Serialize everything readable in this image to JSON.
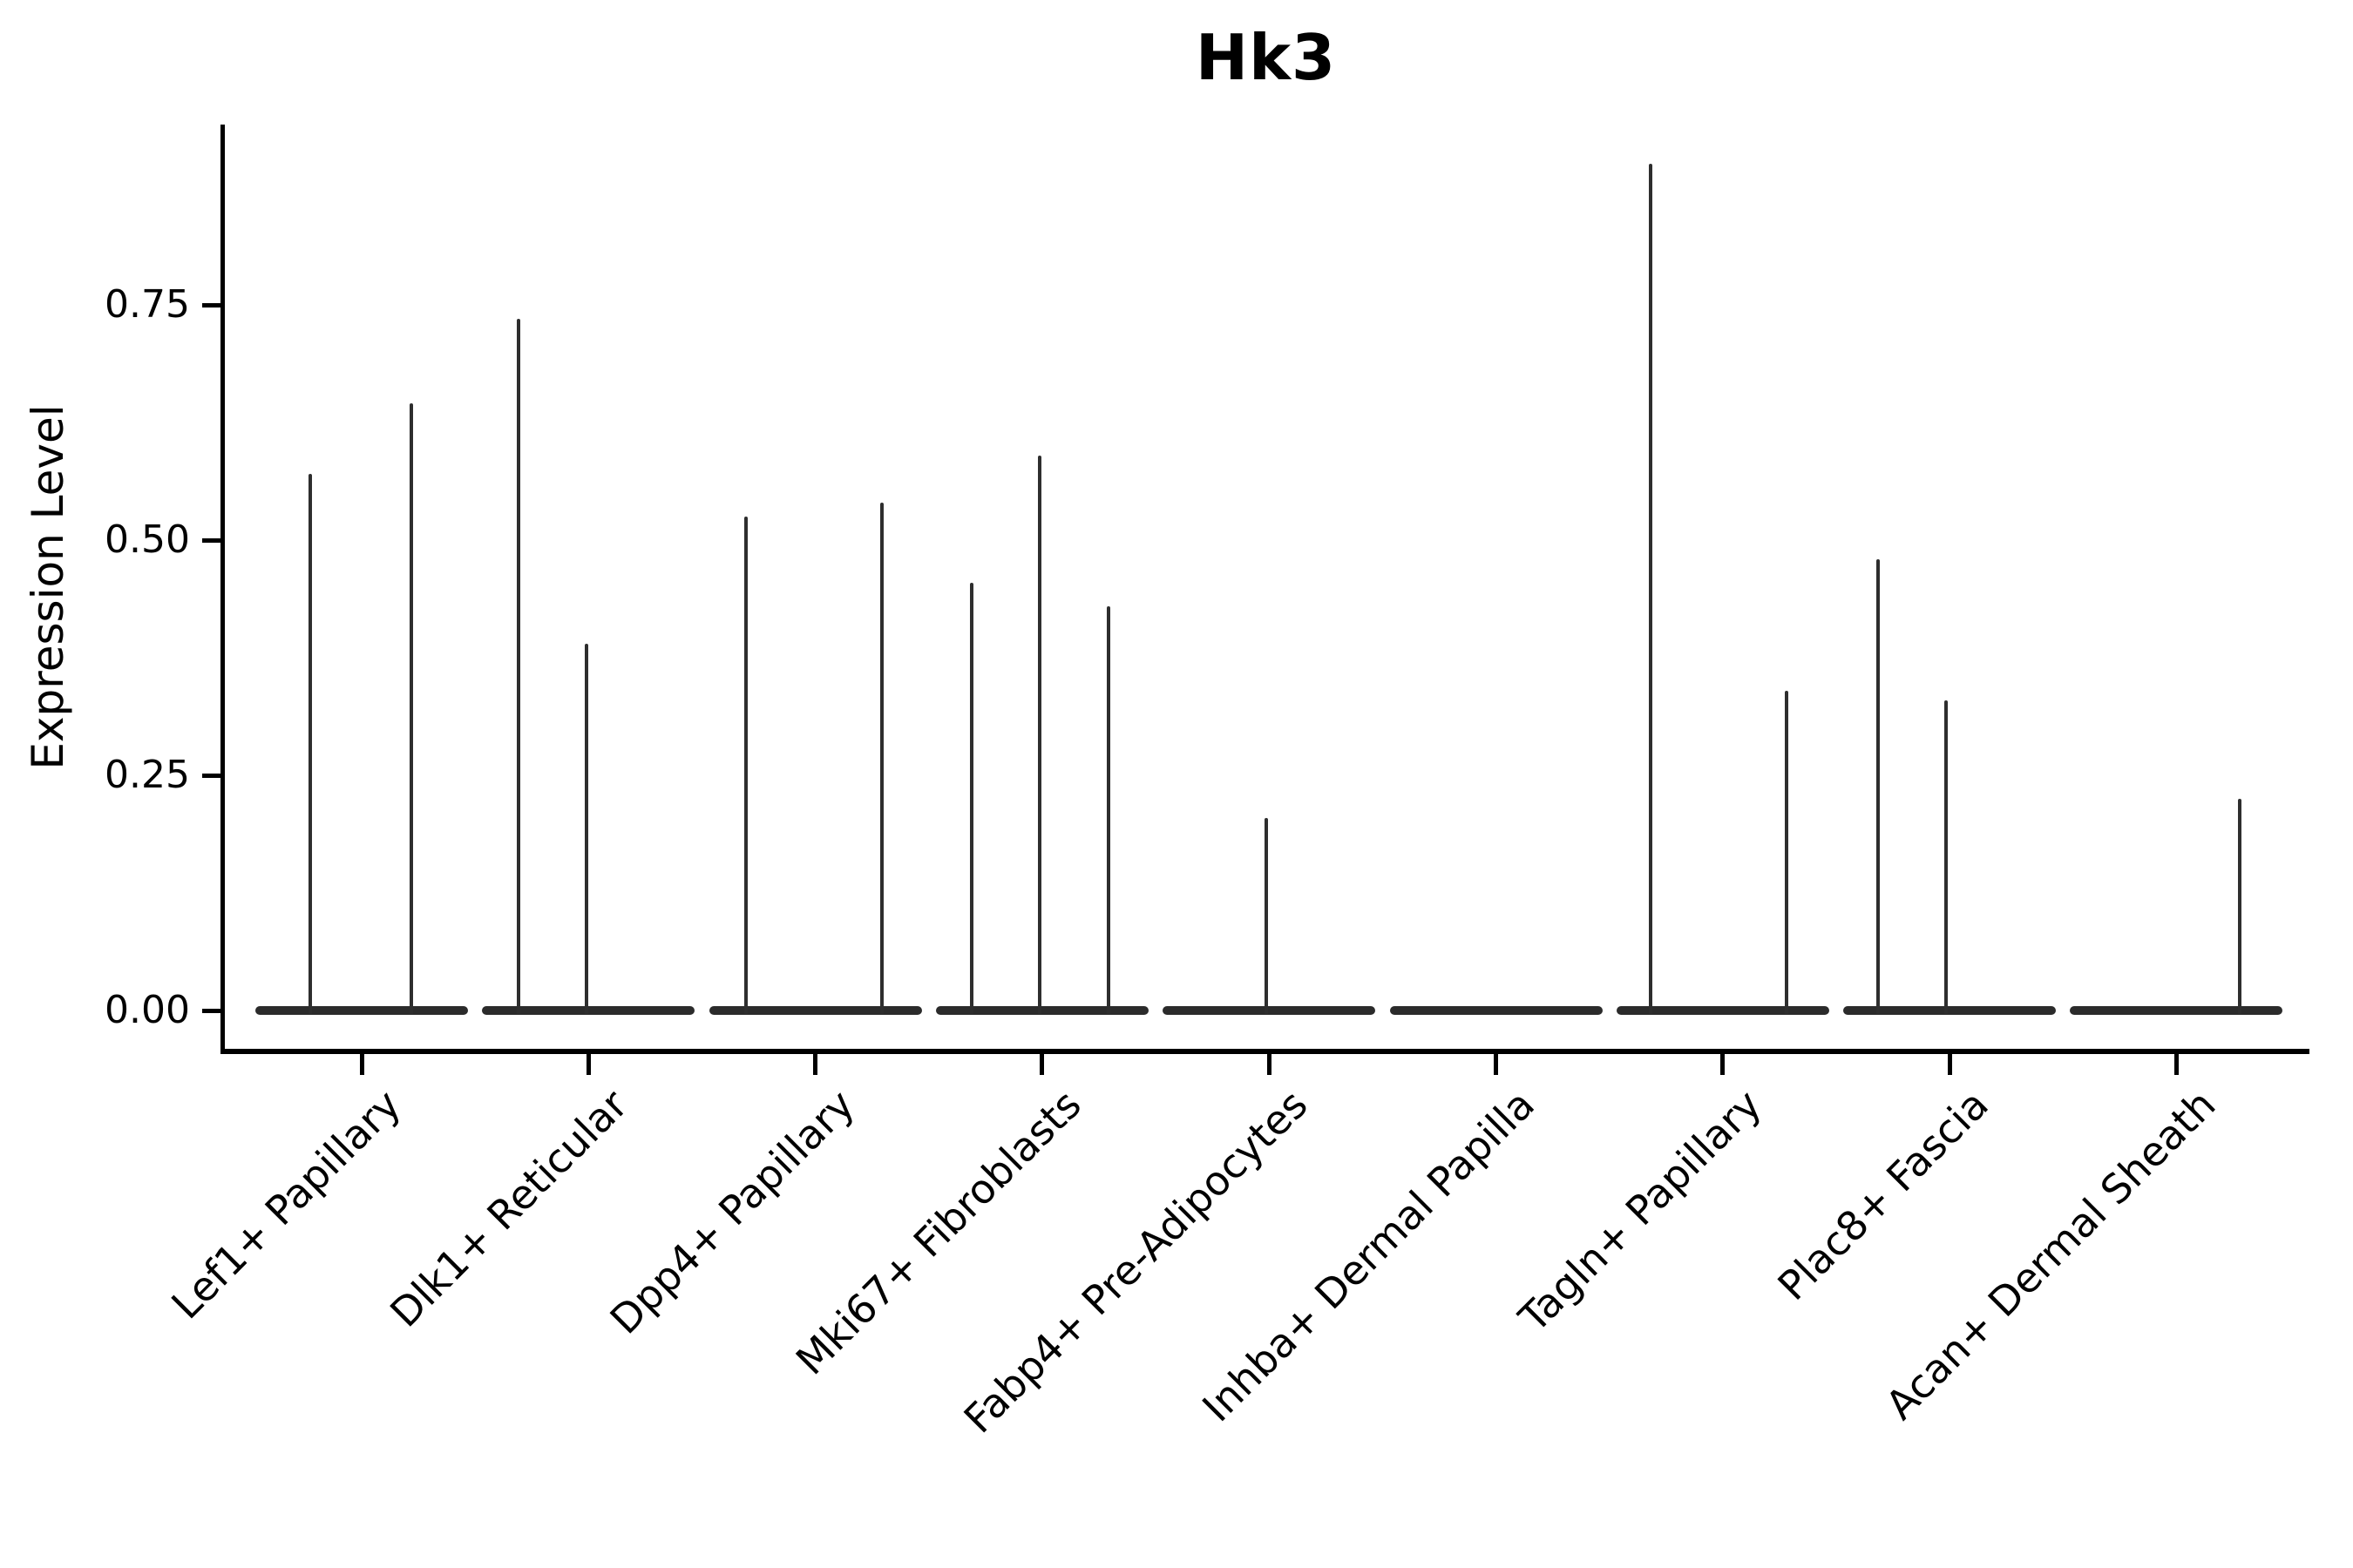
{
  "title": "Hk3",
  "axes": {
    "ylabel": "Expression Level",
    "ytick_labels": [
      "0.00",
      "0.25",
      "0.50",
      "0.75"
    ]
  },
  "chart_data": {
    "type": "violin",
    "title": "Hk3",
    "xlabel": "",
    "ylabel": "Expression Level",
    "ylim": [
      0,
      0.94
    ],
    "yticks": [
      0,
      0.25,
      0.5,
      0.75
    ],
    "grid": false,
    "legend": "none",
    "description": "Violin plot of Hk3 expression per fibroblast cluster; each cluster shows flat near-zero density bodies with thin needles rising to the maximum expressed values.",
    "categories": [
      "Lef1+ Papillary",
      "Dlk1+ Reticular",
      "Dpp4+ Papillary",
      "Mki67+ Fibroblasts",
      "Fabp4+ Pre-Adipocytes",
      "Inhba+ Dermal Papilla",
      "Tagln+ Papillary",
      "Plac8+ Fascia",
      "Acan+ Dermal Sheath"
    ],
    "groups": [
      {
        "label": "Lef1+ Papillary",
        "baseline": 0,
        "violins": [
          {
            "dx": -59,
            "max": 0.57
          },
          {
            "dx": 57,
            "max": 0.645
          }
        ]
      },
      {
        "label": "Dlk1+ Reticular",
        "baseline": 0,
        "violins": [
          {
            "dx": -80,
            "max": 0.735
          },
          {
            "dx": -2,
            "max": 0.39
          }
        ]
      },
      {
        "label": "Dpp4+ Papillary",
        "baseline": 0,
        "violins": [
          {
            "dx": -80,
            "max": 0.525
          },
          {
            "dx": 76,
            "max": 0.54
          }
        ]
      },
      {
        "label": "Mki67+ Fibroblasts",
        "baseline": 0,
        "violins": [
          {
            "dx": -81,
            "max": 0.455
          },
          {
            "dx": -3,
            "max": 0.59
          },
          {
            "dx": 76,
            "max": 0.43
          }
        ]
      },
      {
        "label": "Fabp4+ Pre-Adipocytes",
        "baseline": 0,
        "violins": [
          {
            "dx": -3,
            "max": 0.205
          }
        ]
      },
      {
        "label": "Inhba+ Dermal Papilla",
        "baseline": 0,
        "violins": []
      },
      {
        "label": "Tagln+ Papillary",
        "baseline": 0,
        "violins": [
          {
            "dx": -83,
            "max": 0.9
          },
          {
            "dx": 73,
            "max": 0.34
          }
        ]
      },
      {
        "label": "Plac8+ Fascia",
        "baseline": 0,
        "violins": [
          {
            "dx": -82,
            "max": 0.48
          },
          {
            "dx": -4,
            "max": 0.33
          }
        ]
      },
      {
        "label": "Acan+ Dermal Sheath",
        "baseline": 0,
        "violins": [
          {
            "dx": 73,
            "max": 0.225
          }
        ]
      }
    ]
  },
  "colors": {
    "violin": "#2b2b2b",
    "axis": "#000000",
    "text": "#000000",
    "background": "#ffffff"
  }
}
